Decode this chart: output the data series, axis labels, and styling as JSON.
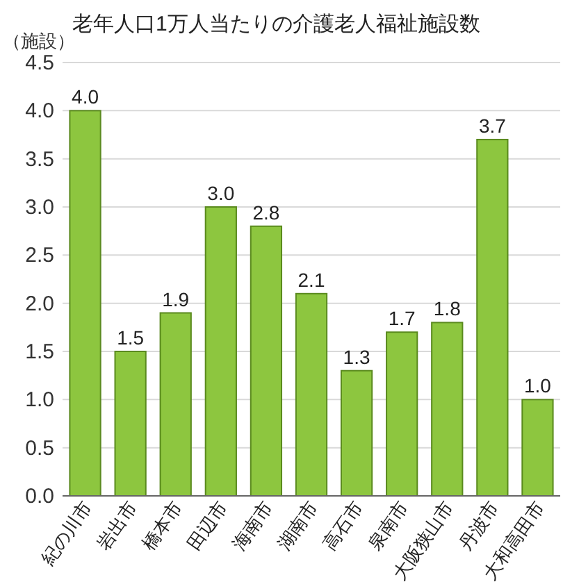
{
  "chart_data": {
    "type": "bar",
    "title": "老年人口1万人当たりの介護老人福祉施設数",
    "ylabel": "（施設）",
    "categories": [
      "紀の川市",
      "岩出市",
      "橋本市",
      "田辺市",
      "海南市",
      "湖南市",
      "高石市",
      "泉南市",
      "大阪狭山市",
      "丹波市",
      "大和高田市"
    ],
    "values": [
      4.0,
      1.5,
      1.9,
      3.0,
      2.8,
      2.1,
      1.3,
      1.7,
      1.8,
      3.7,
      1.0
    ],
    "value_labels": [
      "4.0",
      "1.5",
      "1.9",
      "3.0",
      "2.8",
      "2.1",
      "1.3",
      "1.7",
      "1.8",
      "3.7",
      "1.0"
    ],
    "color": "#8dc63f",
    "ylim": [
      0,
      4.5
    ],
    "yticks": [
      {
        "value": 0,
        "label": "0.0"
      },
      {
        "value": 0.5,
        "label": "0.5"
      },
      {
        "value": 1,
        "label": "1.0"
      },
      {
        "value": 1.5,
        "label": "1.5"
      },
      {
        "value": 2,
        "label": "2.0"
      },
      {
        "value": 2.5,
        "label": "2.5"
      },
      {
        "value": 3,
        "label": "3.0"
      },
      {
        "value": 3.5,
        "label": "3.5"
      },
      {
        "value": 4,
        "label": "4.0"
      },
      {
        "value": 4.5,
        "label": "4.5"
      }
    ],
    "grid": "y"
  }
}
